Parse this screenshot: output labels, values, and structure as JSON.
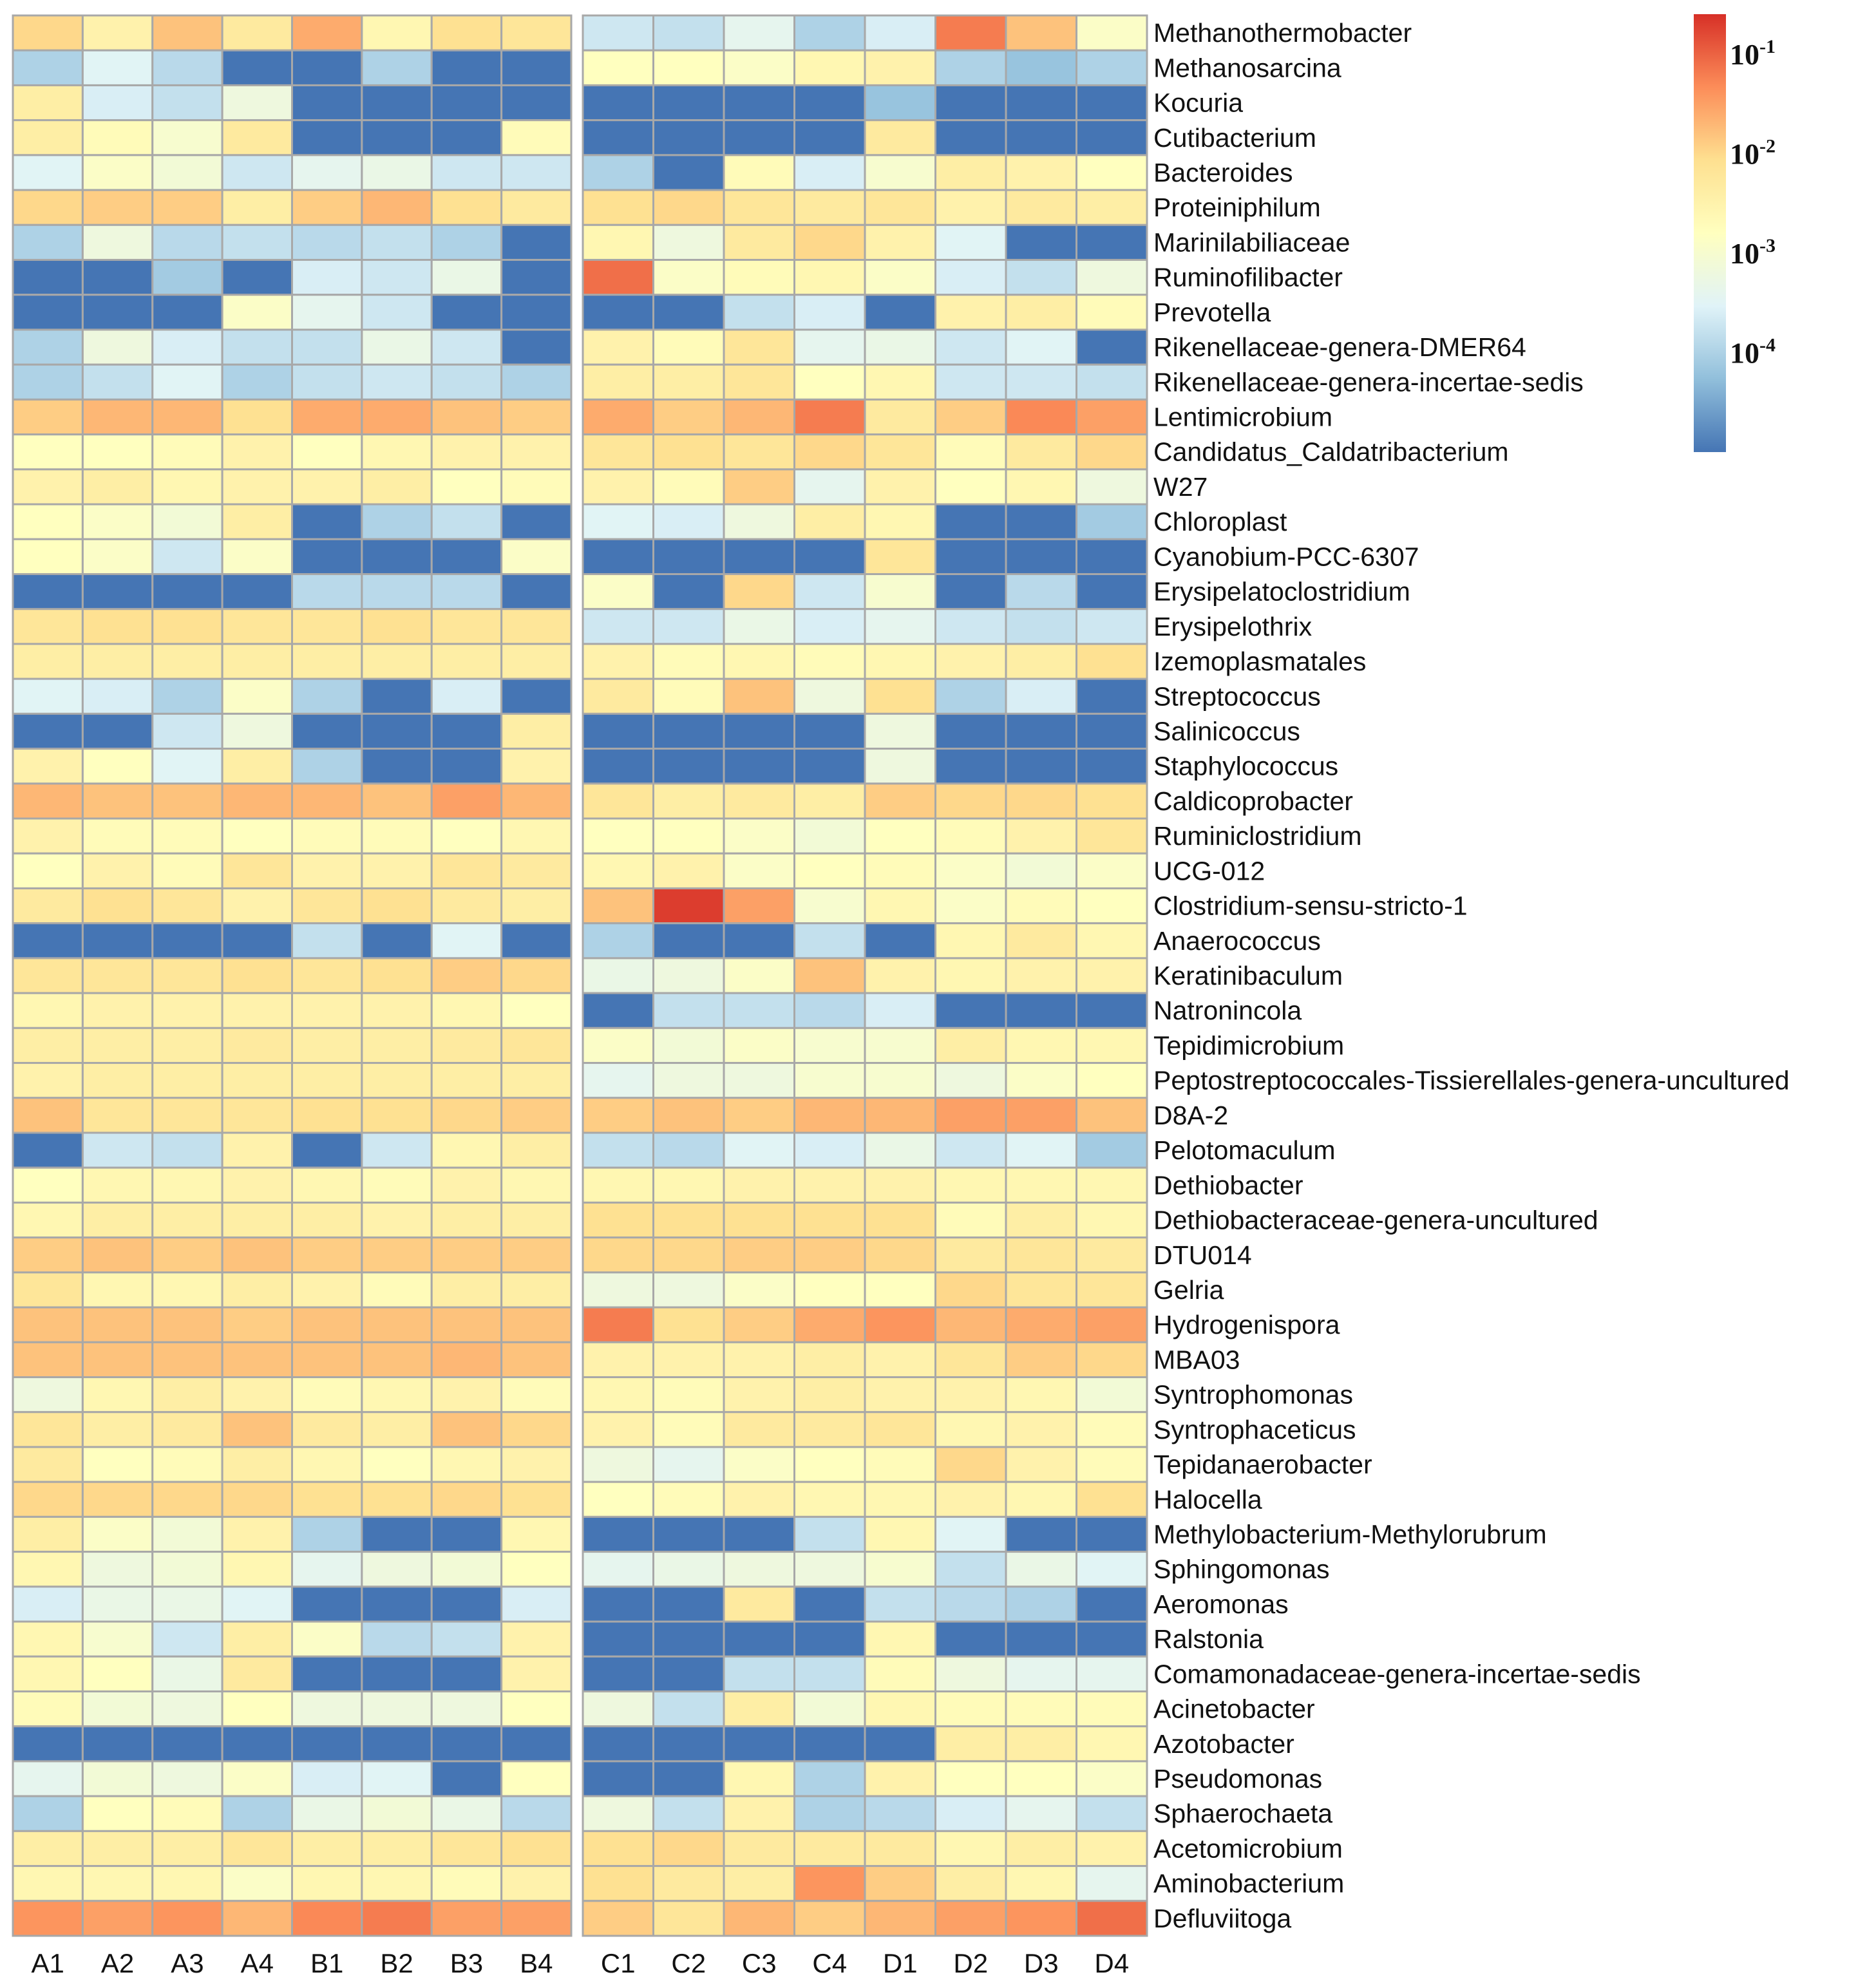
{
  "chart_data": {
    "type": "heatmap",
    "title": "",
    "value_scale": "log10 relative abundance",
    "colorbar": {
      "ticks": [
        {
          "base": "10",
          "exp": "-1",
          "log_value": -1
        },
        {
          "base": "10",
          "exp": "-2",
          "log_value": -2
        },
        {
          "base": "10",
          "exp": "-3",
          "log_value": -3
        },
        {
          "base": "10",
          "exp": "-4",
          "log_value": -4
        }
      ],
      "range_log": [
        -5,
        -0.6
      ],
      "colors": [
        "#4575b4",
        "#91bfdb",
        "#e0f3f8",
        "#ffffbf",
        "#fee090",
        "#fc8d59",
        "#d73027"
      ]
    },
    "groups": [
      {
        "name": "left",
        "columns": [
          "A1",
          "A2",
          "A3",
          "A4",
          "B1",
          "B2",
          "B3",
          "B4"
        ]
      },
      {
        "name": "right",
        "columns": [
          "C1",
          "C2",
          "C3",
          "C4",
          "D1",
          "D2",
          "D3",
          "D4"
        ]
      }
    ],
    "rows": [
      {
        "label": "Methanothermobacter",
        "values": [
          -2.0,
          -2.5,
          -1.8,
          -2.3,
          -1.6,
          -2.6,
          -2.1,
          -2.2,
          -3.7,
          -3.8,
          -3.4,
          -4.0,
          -3.6,
          -1.2,
          -1.8,
          -2.9
        ]
      },
      {
        "label": "Methanosarcina",
        "values": [
          -4.0,
          -3.5,
          -3.9,
          -5.0,
          -5.0,
          -4.0,
          -5.0,
          -5.0,
          -2.8,
          -2.8,
          -2.9,
          -2.6,
          -2.5,
          -4.0,
          -4.2,
          -4.0
        ]
      },
      {
        "label": "Kocuria",
        "values": [
          -2.4,
          -3.6,
          -3.8,
          -3.2,
          -5.0,
          -5.0,
          -5.0,
          -5.0,
          -5.0,
          -5.0,
          -5.0,
          -5.0,
          -4.2,
          -5.0,
          -5.0,
          -5.0
        ]
      },
      {
        "label": "Cutibacterium",
        "values": [
          -2.4,
          -2.7,
          -3.0,
          -2.3,
          -5.0,
          -5.0,
          -5.0,
          -2.7,
          -5.0,
          -5.0,
          -5.0,
          -5.0,
          -2.3,
          -5.0,
          -5.0,
          -5.0
        ]
      },
      {
        "label": "Bacteroides",
        "values": [
          -3.5,
          -2.9,
          -3.1,
          -3.7,
          -3.4,
          -3.3,
          -3.7,
          -3.7,
          -4.0,
          -5.0,
          -2.7,
          -3.6,
          -3.0,
          -2.4,
          -2.5,
          -2.8
        ]
      },
      {
        "label": "Proteiniphilum",
        "values": [
          -2.0,
          -1.9,
          -1.9,
          -2.4,
          -1.9,
          -1.7,
          -2.1,
          -2.3,
          -2.1,
          -2.0,
          -2.2,
          -2.3,
          -2.2,
          -2.5,
          -2.3,
          -2.4
        ]
      },
      {
        "label": "Marinilabiliaceae",
        "values": [
          -4.0,
          -3.2,
          -3.9,
          -3.8,
          -3.9,
          -3.8,
          -4.0,
          -5.0,
          -2.6,
          -3.2,
          -2.3,
          -2.0,
          -2.5,
          -3.5,
          -5.0,
          -5.0
        ]
      },
      {
        "label": "Ruminofilibacter",
        "values": [
          -5.0,
          -5.0,
          -4.1,
          -5.0,
          -3.6,
          -3.7,
          -3.3,
          -5.0,
          -1.1,
          -2.9,
          -2.7,
          -2.6,
          -2.9,
          -3.6,
          -3.8,
          -3.2
        ]
      },
      {
        "label": "Prevotella",
        "values": [
          -5.0,
          -5.0,
          -5.0,
          -2.9,
          -3.4,
          -3.7,
          -5.0,
          -5.0,
          -5.0,
          -5.0,
          -3.8,
          -3.6,
          -5.0,
          -2.5,
          -2.4,
          -2.7
        ]
      },
      {
        "label": "Rikenellaceae-genera-DMER64",
        "values": [
          -4.0,
          -3.2,
          -3.6,
          -3.8,
          -3.8,
          -3.3,
          -3.7,
          -5.0,
          -2.5,
          -2.7,
          -2.2,
          -3.4,
          -3.3,
          -3.7,
          -3.5,
          -5.0
        ]
      },
      {
        "label": "Rikenellaceae-genera-incertae-sedis",
        "values": [
          -4.0,
          -3.8,
          -3.5,
          -4.0,
          -3.8,
          -3.7,
          -3.8,
          -4.0,
          -2.4,
          -2.4,
          -2.2,
          -2.8,
          -2.6,
          -3.7,
          -3.7,
          -3.8
        ]
      },
      {
        "label": "Lentimicrobium",
        "values": [
          -1.9,
          -1.7,
          -1.7,
          -2.1,
          -1.6,
          -1.6,
          -1.8,
          -1.9,
          -1.6,
          -1.9,
          -1.7,
          -1.2,
          -2.3,
          -1.9,
          -1.3,
          -1.5
        ]
      },
      {
        "label": "Candidatus_Caldatribacterium",
        "values": [
          -2.8,
          -2.8,
          -2.7,
          -2.5,
          -2.8,
          -2.6,
          -2.5,
          -2.5,
          -2.2,
          -2.1,
          -2.2,
          -2.0,
          -2.2,
          -2.7,
          -2.3,
          -2.0
        ]
      },
      {
        "label": "W27",
        "values": [
          -2.5,
          -2.4,
          -2.6,
          -2.5,
          -2.5,
          -2.4,
          -2.8,
          -2.7,
          -2.5,
          -2.7,
          -1.9,
          -3.4,
          -2.5,
          -2.8,
          -2.6,
          -3.2
        ]
      },
      {
        "label": "Chloroplast",
        "values": [
          -2.8,
          -2.9,
          -3.1,
          -2.4,
          -5.0,
          -4.0,
          -3.8,
          -5.0,
          -3.5,
          -3.6,
          -3.2,
          -2.4,
          -2.6,
          -5.0,
          -5.0,
          -4.1
        ]
      },
      {
        "label": "Cyanobium-PCC-6307",
        "values": [
          -2.8,
          -2.9,
          -3.7,
          -2.9,
          -5.0,
          -5.0,
          -5.0,
          -2.9,
          -5.0,
          -5.0,
          -5.0,
          -5.0,
          -2.2,
          -5.0,
          -5.0,
          -5.0
        ]
      },
      {
        "label": "Erysipelatoclostridium",
        "values": [
          -5.0,
          -5.0,
          -5.0,
          -5.0,
          -3.9,
          -3.9,
          -3.9,
          -5.0,
          -2.9,
          -5.0,
          -2.0,
          -3.7,
          -3.0,
          -5.0,
          -3.9,
          -5.0
        ]
      },
      {
        "label": "Erysipelothrix",
        "values": [
          -2.2,
          -2.1,
          -2.1,
          -2.2,
          -2.2,
          -2.1,
          -2.2,
          -2.2,
          -3.7,
          -3.7,
          -3.3,
          -3.6,
          -3.4,
          -3.7,
          -3.8,
          -3.7
        ]
      },
      {
        "label": "Izemoplasmatales",
        "values": [
          -2.4,
          -2.4,
          -2.4,
          -2.4,
          -2.4,
          -2.4,
          -2.4,
          -2.4,
          -2.5,
          -2.7,
          -2.6,
          -2.7,
          -2.6,
          -2.5,
          -2.4,
          -2.1
        ]
      },
      {
        "label": "Streptococcus",
        "values": [
          -3.5,
          -3.6,
          -4.0,
          -2.9,
          -4.0,
          -5.0,
          -3.6,
          -5.0,
          -2.3,
          -2.7,
          -1.8,
          -3.2,
          -2.1,
          -4.0,
          -3.6,
          -5.0
        ]
      },
      {
        "label": "Salinicoccus",
        "values": [
          -5.0,
          -5.0,
          -3.7,
          -3.2,
          -5.0,
          -5.0,
          -5.0,
          -2.4,
          -5.0,
          -5.0,
          -5.0,
          -5.0,
          -3.2,
          -5.0,
          -5.0,
          -5.0
        ]
      },
      {
        "label": "Staphylococcus",
        "values": [
          -2.5,
          -2.8,
          -3.5,
          -2.4,
          -4.0,
          -5.0,
          -5.0,
          -2.5,
          -5.0,
          -5.0,
          -5.0,
          -5.0,
          -3.2,
          -5.0,
          -5.0,
          -5.0
        ]
      },
      {
        "label": "Caldicoprobacter",
        "values": [
          -1.7,
          -1.8,
          -1.8,
          -1.7,
          -1.7,
          -1.8,
          -1.5,
          -1.7,
          -2.2,
          -2.4,
          -2.3,
          -2.4,
          -1.9,
          -2.0,
          -2.0,
          -2.1
        ]
      },
      {
        "label": "Ruminiclostridium",
        "values": [
          -2.5,
          -2.7,
          -2.7,
          -2.8,
          -2.7,
          -2.7,
          -2.8,
          -2.6,
          -2.8,
          -2.8,
          -2.9,
          -3.1,
          -2.8,
          -2.7,
          -2.5,
          -2.2
        ]
      },
      {
        "label": "UCG-012",
        "values": [
          -2.8,
          -2.5,
          -2.7,
          -2.2,
          -2.5,
          -2.5,
          -2.2,
          -2.3,
          -2.6,
          -2.5,
          -2.9,
          -2.8,
          -2.7,
          -2.9,
          -3.1,
          -2.9
        ]
      },
      {
        "label": "Clostridium-sensu-stricto-1",
        "values": [
          -2.3,
          -2.1,
          -2.2,
          -2.5,
          -2.2,
          -2.1,
          -2.3,
          -2.4,
          -1.8,
          -0.7,
          -1.5,
          -3.0,
          -2.6,
          -2.9,
          -2.7,
          -2.8
        ]
      },
      {
        "label": "Anaerococcus",
        "values": [
          -5.0,
          -5.0,
          -5.0,
          -5.0,
          -3.8,
          -5.0,
          -3.5,
          -5.0,
          -4.0,
          -5.0,
          -5.0,
          -3.8,
          -5.0,
          -2.6,
          -2.3,
          -2.6
        ]
      },
      {
        "label": "Keratinibaculum",
        "values": [
          -2.2,
          -2.2,
          -2.2,
          -2.1,
          -2.2,
          -2.1,
          -1.9,
          -2.0,
          -3.3,
          -3.2,
          -2.9,
          -1.8,
          -2.5,
          -2.6,
          -2.5,
          -2.5
        ]
      },
      {
        "label": "Natronincola",
        "values": [
          -2.6,
          -2.5,
          -2.5,
          -2.5,
          -2.5,
          -2.5,
          -2.6,
          -2.8,
          -5.0,
          -3.8,
          -3.8,
          -3.9,
          -3.6,
          -5.0,
          -5.0,
          -5.0
        ]
      },
      {
        "label": "Tepidimicrobium",
        "values": [
          -2.4,
          -2.4,
          -2.4,
          -2.3,
          -2.4,
          -2.4,
          -2.3,
          -2.2,
          -2.9,
          -3.1,
          -2.9,
          -3.0,
          -3.0,
          -2.4,
          -2.6,
          -2.6
        ]
      },
      {
        "label": "Peptostreptococcales-Tissierellales-genera-uncultured",
        "values": [
          -2.5,
          -2.4,
          -2.4,
          -2.4,
          -2.4,
          -2.4,
          -2.4,
          -2.4,
          -3.4,
          -3.2,
          -3.2,
          -3.0,
          -3.0,
          -3.2,
          -2.9,
          -2.8
        ]
      },
      {
        "label": "D8A-2",
        "values": [
          -1.8,
          -2.2,
          -2.2,
          -2.2,
          -2.1,
          -2.1,
          -2.0,
          -1.9,
          -1.9,
          -1.8,
          -1.9,
          -1.7,
          -1.7,
          -1.5,
          -1.5,
          -1.8
        ]
      },
      {
        "label": "Pelotomaculum",
        "values": [
          -5.0,
          -3.7,
          -3.8,
          -2.5,
          -5.0,
          -3.7,
          -2.6,
          -2.4,
          -3.8,
          -3.9,
          -3.5,
          -3.6,
          -3.3,
          -3.7,
          -3.5,
          -4.1
        ]
      },
      {
        "label": "Dethiobacter",
        "values": [
          -2.8,
          -2.6,
          -2.6,
          -2.5,
          -2.6,
          -2.7,
          -2.5,
          -2.6,
          -2.6,
          -2.6,
          -2.5,
          -2.5,
          -2.5,
          -2.6,
          -2.6,
          -2.6
        ]
      },
      {
        "label": "Dethiobacteraceae-genera-uncultured",
        "values": [
          -2.6,
          -2.4,
          -2.4,
          -2.4,
          -2.4,
          -2.5,
          -2.4,
          -2.4,
          -2.1,
          -2.1,
          -2.1,
          -2.1,
          -2.1,
          -2.7,
          -2.4,
          -2.6
        ]
      },
      {
        "label": "DTU014",
        "values": [
          -1.9,
          -1.8,
          -1.9,
          -1.8,
          -1.9,
          -1.9,
          -1.9,
          -1.9,
          -2.0,
          -2.0,
          -1.9,
          -1.9,
          -2.0,
          -2.3,
          -2.2,
          -2.3
        ]
      },
      {
        "label": "Gelria",
        "values": [
          -2.2,
          -2.6,
          -2.6,
          -2.4,
          -2.5,
          -2.7,
          -2.4,
          -2.4,
          -3.2,
          -3.2,
          -2.9,
          -2.8,
          -2.8,
          -2.0,
          -2.2,
          -2.2
        ]
      },
      {
        "label": "Hydrogenispora",
        "values": [
          -1.8,
          -1.8,
          -1.8,
          -1.9,
          -1.8,
          -1.8,
          -1.8,
          -1.8,
          -1.2,
          -2.1,
          -1.9,
          -1.6,
          -1.4,
          -1.7,
          -1.6,
          -1.5
        ]
      },
      {
        "label": "MBA03",
        "values": [
          -1.8,
          -1.8,
          -1.8,
          -1.8,
          -1.8,
          -1.8,
          -1.7,
          -1.8,
          -2.5,
          -2.5,
          -2.5,
          -2.4,
          -2.5,
          -2.2,
          -1.9,
          -2.0
        ]
      },
      {
        "label": "Syntrophomonas",
        "values": [
          -3.2,
          -2.6,
          -2.4,
          -2.5,
          -2.7,
          -2.6,
          -2.5,
          -2.7,
          -2.6,
          -2.7,
          -2.5,
          -2.4,
          -2.5,
          -2.5,
          -2.6,
          -3.1
        ]
      },
      {
        "label": "Syntrophaceticus",
        "values": [
          -2.2,
          -2.4,
          -2.3,
          -1.8,
          -2.3,
          -2.4,
          -1.8,
          -2.0,
          -2.5,
          -2.7,
          -2.3,
          -2.3,
          -2.2,
          -2.6,
          -2.5,
          -2.7
        ]
      },
      {
        "label": "Tepidanaerobacter",
        "values": [
          -2.3,
          -2.8,
          -2.7,
          -2.4,
          -2.6,
          -2.8,
          -2.6,
          -2.5,
          -3.2,
          -3.4,
          -2.9,
          -2.8,
          -2.7,
          -2.0,
          -2.5,
          -2.7
        ]
      },
      {
        "label": "Halocella",
        "values": [
          -2.0,
          -2.0,
          -2.0,
          -2.0,
          -2.1,
          -2.1,
          -2.0,
          -2.1,
          -2.8,
          -2.7,
          -2.5,
          -2.6,
          -2.6,
          -2.5,
          -2.6,
          -2.1
        ]
      },
      {
        "label": "Methylobacterium-Methylorubrum",
        "values": [
          -2.4,
          -2.9,
          -3.1,
          -2.5,
          -4.0,
          -5.0,
          -5.0,
          -2.6,
          -5.0,
          -5.0,
          -5.0,
          -3.8,
          -2.6,
          -3.5,
          -5.0,
          -5.0
        ]
      },
      {
        "label": "Sphingomonas",
        "values": [
          -2.6,
          -3.2,
          -3.1,
          -2.6,
          -3.4,
          -3.2,
          -3.1,
          -2.8,
          -3.4,
          -3.3,
          -3.2,
          -3.2,
          -3.0,
          -3.8,
          -3.3,
          -3.5
        ]
      },
      {
        "label": "Aeromonas",
        "values": [
          -3.6,
          -3.3,
          -3.3,
          -3.5,
          -5.0,
          -5.0,
          -5.0,
          -3.6,
          -5.0,
          -5.0,
          -2.3,
          -5.0,
          -3.8,
          -3.9,
          -4.0,
          -5.0
        ]
      },
      {
        "label": "Ralstonia",
        "values": [
          -2.6,
          -3.0,
          -3.7,
          -2.4,
          -2.9,
          -3.9,
          -3.8,
          -2.5,
          -5.0,
          -5.0,
          -5.0,
          -5.0,
          -2.6,
          -5.0,
          -5.0,
          -5.0
        ]
      },
      {
        "label": "Comamonadaceae-genera-incertae-sedis",
        "values": [
          -2.6,
          -2.8,
          -3.3,
          -2.3,
          -5.0,
          -5.0,
          -5.0,
          -2.5,
          -5.0,
          -5.0,
          -3.8,
          -3.8,
          -2.7,
          -3.2,
          -3.4,
          -3.4
        ]
      },
      {
        "label": "Acinetobacter",
        "values": [
          -2.7,
          -3.1,
          -3.2,
          -2.8,
          -3.2,
          -3.2,
          -3.2,
          -2.8,
          -3.2,
          -3.8,
          -2.4,
          -3.1,
          -2.6,
          -2.7,
          -2.7,
          -2.7
        ]
      },
      {
        "label": "Azotobacter",
        "values": [
          -5.0,
          -5.0,
          -5.0,
          -5.0,
          -5.0,
          -5.0,
          -5.0,
          -5.0,
          -5.0,
          -5.0,
          -5.0,
          -5.0,
          -5.0,
          -2.4,
          -2.4,
          -2.6
        ]
      },
      {
        "label": "Pseudomonas",
        "values": [
          -3.4,
          -3.1,
          -3.2,
          -2.9,
          -3.6,
          -3.5,
          -5.0,
          -2.8,
          -5.0,
          -5.0,
          -2.6,
          -4.0,
          -2.5,
          -2.8,
          -2.8,
          -2.9
        ]
      },
      {
        "label": "Sphaerochaeta",
        "values": [
          -4.0,
          -2.8,
          -2.7,
          -4.0,
          -3.3,
          -3.1,
          -3.3,
          -3.9,
          -3.2,
          -3.8,
          -2.5,
          -4.0,
          -3.9,
          -3.6,
          -3.4,
          -3.8
        ]
      },
      {
        "label": "Acetomicrobium",
        "values": [
          -2.4,
          -2.4,
          -2.4,
          -2.2,
          -2.4,
          -2.4,
          -2.2,
          -2.1,
          -2.1,
          -2.0,
          -2.3,
          -2.3,
          -2.3,
          -2.6,
          -2.4,
          -2.5
        ]
      },
      {
        "label": "Aminobacterium",
        "values": [
          -2.6,
          -2.6,
          -2.6,
          -2.9,
          -2.6,
          -2.6,
          -2.7,
          -2.5,
          -2.1,
          -2.3,
          -2.4,
          -1.4,
          -1.9,
          -2.4,
          -2.6,
          -3.4
        ]
      },
      {
        "label": "Defluviitoga",
        "values": [
          -1.4,
          -1.5,
          -1.4,
          -1.7,
          -1.3,
          -1.2,
          -1.5,
          -1.5,
          -1.9,
          -2.2,
          -1.7,
          -1.9,
          -1.7,
          -1.5,
          -1.4,
          -1.1
        ]
      }
    ]
  }
}
